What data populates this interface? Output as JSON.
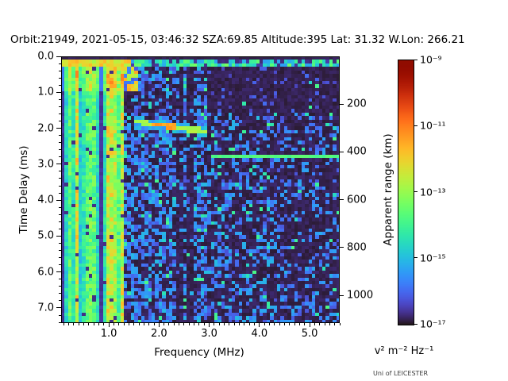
{
  "chart_data": {
    "type": "heatmap",
    "title": "Orbit:21949, 2021-05-15, 03:46:32 SZA:69.85 Altitude:395 Lat: 31.32 W.Lon: 266.21",
    "xlabel": "Frequency (MHz)",
    "ylabel_left": "Time Delay (ms)",
    "ylabel_right": "Apparent range (km)",
    "colorbar_unit": "v² m⁻² Hz⁻¹",
    "watermark": "Uni of LEICESTER",
    "colormap": "turbo",
    "x_range": [
      0.05,
      5.6
    ],
    "t_max": 7.42,
    "km_per_ms": 150.4,
    "x_tick_values": [
      1.0,
      2.0,
      3.0,
      4.0,
      5.0
    ],
    "x_tick_labels": [
      "1.0",
      "2.0",
      "3.0",
      "4.0",
      "5.0"
    ],
    "x_minor_step": 0.1,
    "y_tick_values": [
      0.0,
      1.0,
      2.0,
      3.0,
      4.0,
      5.0,
      6.0,
      7.0
    ],
    "y_tick_labels": [
      "0.0",
      "1.0",
      "2.0",
      "3.0",
      "4.0",
      "5.0",
      "6.0",
      "7.0"
    ],
    "y_minor_step": 0.2,
    "y2_tick_values": [
      200,
      400,
      600,
      800,
      1000
    ],
    "y2_tick_labels": [
      "200",
      "400",
      "600",
      "800",
      "1000"
    ],
    "colorbar_tick_labels": [
      "10⁻⁹",
      "10⁻¹¹",
      "10⁻¹³",
      "10⁻¹⁵",
      "10⁻¹⁷"
    ],
    "colorbar_range_exponents": [
      -9,
      -17
    ],
    "features": {
      "grid_cols": 80,
      "grid_rows": 76,
      "seed": 1337,
      "dark_band_t": 0.135,
      "surface_row_t": [
        0.135,
        0.29
      ],
      "surface_solid_f_max": 1.45,
      "stripe_f_max": 1.33,
      "stripe_top_f_max": 1.55,
      "stripe_top_t": 0.95,
      "trace_f": [
        1.48,
        1.85,
        2.35,
        2.6,
        2.95
      ],
      "trace_t": [
        1.78,
        1.9,
        1.97,
        2.04,
        2.08
      ],
      "trace_peak_f": [
        1.85,
        2.35
      ],
      "trace_level": 0.5,
      "trace_peak_level": 0.68,
      "hline_t": 2.76,
      "hline_f_min": 3.0,
      "hline_level": 0.38,
      "smear_f": [
        1.5,
        1.72
      ],
      "smear_t": [
        0.25,
        1.8
      ],
      "dark_cols_f": [
        2.42,
        2.62
      ]
    }
  }
}
